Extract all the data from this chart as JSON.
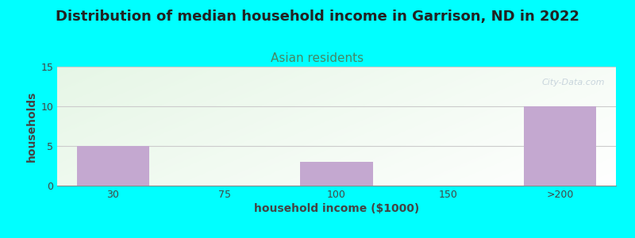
{
  "title": "Distribution of median household income in Garrison, ND in 2022",
  "subtitle": "Asian residents",
  "xlabel": "household income ($1000)",
  "ylabel": "households",
  "background_color": "#00FFFF",
  "bar_color": "#C4A8D0",
  "categories": [
    "30",
    "75",
    "100",
    "150",
    ">200"
  ],
  "values": [
    5,
    0,
    3,
    0,
    10
  ],
  "ylim": [
    0,
    15
  ],
  "yticks": [
    0,
    5,
    10,
    15
  ],
  "watermark": "City-Data.com",
  "plot_bg_top_left": "#E8F5E8",
  "plot_bg_top_right": "#FFFFFF",
  "plot_bg_bottom": "#D5EDD5",
  "title_fontsize": 13,
  "subtitle_fontsize": 11,
  "subtitle_color": "#448866",
  "axis_label_fontsize": 10,
  "tick_fontsize": 9,
  "title_color": "#222222",
  "tick_color": "#444444",
  "grid_color": "#CCCCCC"
}
